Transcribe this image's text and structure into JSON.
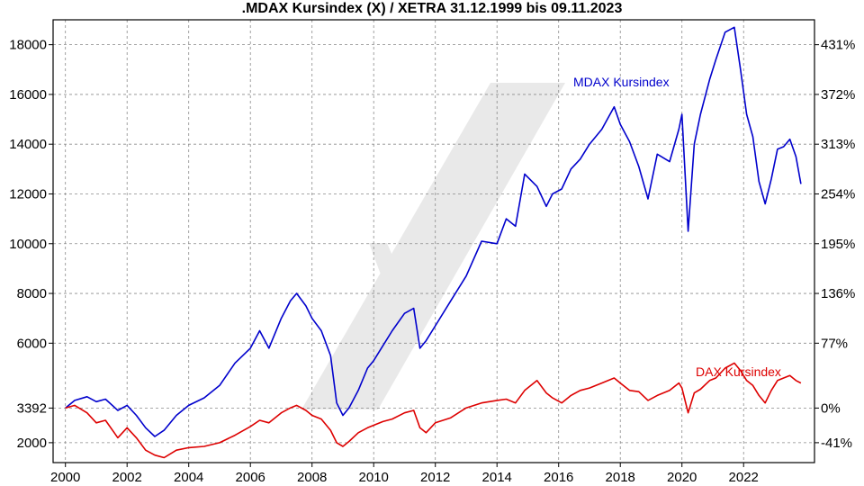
{
  "chart_data": {
    "type": "line",
    "title": ".MDAX Kursindex (X) / XETRA 31.12.1999 bis 09.11.2023",
    "xlabel": "",
    "ylabel": "",
    "xlim": [
      1999.6,
      2024.3
    ],
    "ylim": [
      1200,
      19000
    ],
    "x_ticks": [
      2000,
      2002,
      2004,
      2006,
      2008,
      2010,
      2012,
      2014,
      2016,
      2018,
      2020,
      2022
    ],
    "y_ticks_left": [
      {
        "value": 2000,
        "label": "2000"
      },
      {
        "value": 3392,
        "label": "3392"
      },
      {
        "value": 6000,
        "label": "6000"
      },
      {
        "value": 8000,
        "label": "8000"
      },
      {
        "value": 10000,
        "label": "10000"
      },
      {
        "value": 12000,
        "label": "12000"
      },
      {
        "value": 14000,
        "label": "14000"
      },
      {
        "value": 16000,
        "label": "16000"
      },
      {
        "value": 18000,
        "label": "18000"
      }
    ],
    "y_ticks_right": [
      {
        "value": 2000,
        "label": "-41%"
      },
      {
        "value": 3392,
        "label": "0%"
      },
      {
        "value": 6000,
        "label": "77%"
      },
      {
        "value": 8000,
        "label": "136%"
      },
      {
        "value": 10000,
        "label": "195%"
      },
      {
        "value": 12000,
        "label": "254%"
      },
      {
        "value": 14000,
        "label": "313%"
      },
      {
        "value": 16000,
        "label": "372%"
      },
      {
        "value": 18000,
        "label": "431%"
      }
    ],
    "grid": true,
    "series": [
      {
        "name": "MDAX Kursindex",
        "color": "#0000cc",
        "x": [
          2000.0,
          2000.3,
          2000.7,
          2001.0,
          2001.3,
          2001.7,
          2002.0,
          2002.3,
          2002.6,
          2002.9,
          2003.2,
          2003.6,
          2004.0,
          2004.5,
          2005.0,
          2005.5,
          2006.0,
          2006.3,
          2006.6,
          2007.0,
          2007.3,
          2007.5,
          2007.8,
          2008.0,
          2008.3,
          2008.6,
          2008.8,
          2009.0,
          2009.2,
          2009.5,
          2009.8,
          2010.0,
          2010.3,
          2010.6,
          2011.0,
          2011.3,
          2011.5,
          2011.7,
          2012.0,
          2012.5,
          2013.0,
          2013.5,
          2014.0,
          2014.3,
          2014.6,
          2014.9,
          2015.3,
          2015.6,
          2015.8,
          2016.1,
          2016.4,
          2016.7,
          2017.0,
          2017.4,
          2017.8,
          2018.0,
          2018.3,
          2018.6,
          2018.9,
          2019.2,
          2019.6,
          2019.9,
          2020.0,
          2020.2,
          2020.4,
          2020.6,
          2020.9,
          2021.1,
          2021.4,
          2021.7,
          2021.9,
          2022.1,
          2022.3,
          2022.5,
          2022.7,
          2022.9,
          2023.1,
          2023.3,
          2023.5,
          2023.7,
          2023.86
        ],
        "y": [
          3392,
          3700,
          3850,
          3650,
          3750,
          3300,
          3500,
          3100,
          2600,
          2250,
          2500,
          3100,
          3500,
          3800,
          4300,
          5200,
          5800,
          6500,
          5800,
          7000,
          7700,
          8000,
          7500,
          7000,
          6500,
          5500,
          3600,
          3100,
          3400,
          4100,
          5000,
          5300,
          5900,
          6500,
          7200,
          7400,
          5800,
          6100,
          6700,
          7700,
          8700,
          10100,
          10000,
          11000,
          10700,
          12800,
          12300,
          11500,
          12000,
          12200,
          13000,
          13400,
          14000,
          14600,
          15500,
          14800,
          14100,
          13100,
          11800,
          13600,
          13300,
          14600,
          15200,
          10500,
          14000,
          15200,
          16600,
          17400,
          18500,
          18700,
          17000,
          15200,
          14300,
          12500,
          11600,
          12600,
          13800,
          13900,
          14200,
          13500,
          12400
        ]
      },
      {
        "name": "DAX Kursindex",
        "color": "#dd0000",
        "x": [
          2000.0,
          2000.3,
          2000.7,
          2001.0,
          2001.3,
          2001.7,
          2002.0,
          2002.3,
          2002.6,
          2002.9,
          2003.2,
          2003.6,
          2004.0,
          2004.5,
          2005.0,
          2005.5,
          2006.0,
          2006.3,
          2006.6,
          2007.0,
          2007.3,
          2007.5,
          2007.8,
          2008.0,
          2008.3,
          2008.6,
          2008.8,
          2009.0,
          2009.2,
          2009.5,
          2009.8,
          2010.0,
          2010.3,
          2010.6,
          2011.0,
          2011.3,
          2011.5,
          2011.7,
          2012.0,
          2012.5,
          2013.0,
          2013.5,
          2014.0,
          2014.3,
          2014.6,
          2014.9,
          2015.3,
          2015.6,
          2015.8,
          2016.1,
          2016.4,
          2016.7,
          2017.0,
          2017.4,
          2017.8,
          2018.0,
          2018.3,
          2018.6,
          2018.9,
          2019.2,
          2019.6,
          2019.9,
          2020.0,
          2020.2,
          2020.4,
          2020.6,
          2020.9,
          2021.1,
          2021.4,
          2021.7,
          2021.9,
          2022.1,
          2022.3,
          2022.5,
          2022.7,
          2022.9,
          2023.1,
          2023.3,
          2023.5,
          2023.7,
          2023.86
        ],
        "y": [
          3392,
          3500,
          3200,
          2800,
          2900,
          2200,
          2600,
          2200,
          1700,
          1500,
          1400,
          1700,
          1800,
          1850,
          2000,
          2300,
          2650,
          2900,
          2800,
          3200,
          3400,
          3500,
          3300,
          3100,
          2950,
          2500,
          2000,
          1850,
          2050,
          2400,
          2600,
          2700,
          2850,
          2950,
          3200,
          3300,
          2600,
          2400,
          2800,
          3000,
          3400,
          3600,
          3700,
          3750,
          3600,
          4100,
          4500,
          4000,
          3800,
          3600,
          3900,
          4100,
          4200,
          4400,
          4600,
          4400,
          4100,
          4050,
          3700,
          3900,
          4100,
          4400,
          4200,
          3200,
          4000,
          4150,
          4500,
          4600,
          5000,
          5200,
          4900,
          4500,
          4300,
          3900,
          3600,
          4100,
          4500,
          4600,
          4700,
          4500,
          4400
        ]
      }
    ],
    "annotations": [
      "MDAX Kursindex",
      "DAX Kursindex"
    ]
  }
}
